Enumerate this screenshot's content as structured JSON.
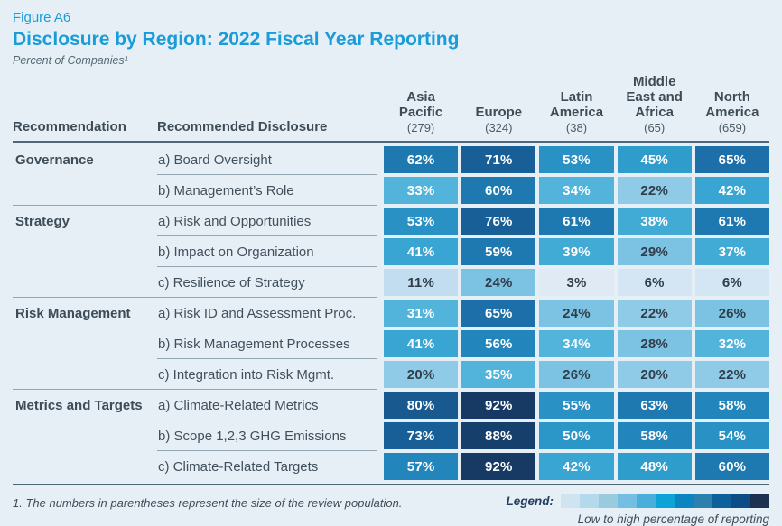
{
  "header": {
    "figure_label": "Figure A6",
    "title": "Disclosure by Region: 2022 Fiscal Year Reporting",
    "subtitle": "Percent of Companies¹"
  },
  "table_headers": {
    "recommendation": "Recommendation",
    "disclosure": "Recommended Disclosure"
  },
  "footer": {
    "footnote": "1. The numbers in parentheses represent the size of the review population.",
    "legend_label": "Legend:",
    "legend_caption": "Low to high percentage of reporting"
  },
  "colors": {
    "accent_blue": "#199cd8",
    "page_background": "#e6eff6",
    "header_rule": "#4e6876",
    "row_separator": "#93a6b2"
  },
  "chart_data": {
    "type": "heatmap",
    "title": "Disclosure by Region: 2022 Fiscal Year Reporting",
    "subtitle": "Percent of Companies¹",
    "unit": "%",
    "columns": [
      {
        "name": "Asia Pacific",
        "size": "(279)"
      },
      {
        "name": "Europe",
        "size": "(324)"
      },
      {
        "name": "Latin America",
        "size": "(38)"
      },
      {
        "name": "Middle East and Africa",
        "size": "(65)"
      },
      {
        "name": "North America",
        "size": "(659)"
      }
    ],
    "groups": [
      {
        "name": "Governance",
        "rows": [
          {
            "label": "a) Board Oversight",
            "values": [
              62,
              71,
              53,
              45,
              65
            ]
          },
          {
            "label": "b) Management’s Role",
            "values": [
              33,
              60,
              34,
              22,
              42
            ]
          }
        ]
      },
      {
        "name": "Strategy",
        "rows": [
          {
            "label": "a) Risk and Opportunities",
            "values": [
              53,
              76,
              61,
              38,
              61
            ]
          },
          {
            "label": "b) Impact on Organization",
            "values": [
              41,
              59,
              39,
              29,
              37
            ]
          },
          {
            "label": "c) Resilience of Strategy",
            "values": [
              11,
              24,
              3,
              6,
              6
            ]
          }
        ]
      },
      {
        "name": "Risk Management",
        "rows": [
          {
            "label": "a) Risk ID and Assessment Proc.",
            "values": [
              31,
              65,
              24,
              22,
              26
            ]
          },
          {
            "label": "b) Risk Management Processes",
            "values": [
              41,
              56,
              34,
              28,
              32
            ]
          },
          {
            "label": "c) Integration into Risk Mgmt.",
            "values": [
              20,
              35,
              26,
              20,
              22
            ]
          }
        ]
      },
      {
        "name": "Metrics and Targets",
        "rows": [
          {
            "label": "a) Climate-Related Metrics",
            "values": [
              80,
              92,
              55,
              63,
              58
            ]
          },
          {
            "label": "b) Scope 1,2,3 GHG Emissions",
            "values": [
              73,
              88,
              50,
              58,
              54
            ]
          },
          {
            "label": "c) Climate-Related Targets",
            "values": [
              57,
              92,
              42,
              48,
              60
            ]
          }
        ]
      }
    ],
    "color_scale": {
      "description": "low to high percentage of reporting",
      "stops": [
        [
          5,
          "#dfeaf5"
        ],
        [
          10,
          "#d4e6f3"
        ],
        [
          19,
          "#c3ddf0"
        ],
        [
          23,
          "#8fcbe7"
        ],
        [
          30,
          "#7cc3e3"
        ],
        [
          36,
          "#52b3db"
        ],
        [
          40,
          "#41abd6"
        ],
        [
          44,
          "#38a5d2"
        ],
        [
          49,
          "#2f9dcc"
        ],
        [
          52,
          "#2b97c8"
        ],
        [
          55,
          "#2991c3"
        ],
        [
          58,
          "#2285bb"
        ],
        [
          63,
          "#1e79b1"
        ],
        [
          68,
          "#1c6fa8"
        ],
        [
          78,
          "#195f97"
        ],
        [
          85,
          "#185a90"
        ],
        [
          90,
          "#173f6c"
        ],
        [
          100,
          "#163a63"
        ]
      ],
      "dark_text_max": 29,
      "dark_text_color": "#2f3e4a",
      "light_text_color": "#ffffff"
    },
    "legend_colors": [
      "#cfe3f0",
      "#b4d8ec",
      "#98cbdd",
      "#74bde3",
      "#49afda",
      "#0ba3d8",
      "#0c84c0",
      "#2c80ae",
      "#0f609a",
      "#0d4d87",
      "#1c3050"
    ]
  }
}
